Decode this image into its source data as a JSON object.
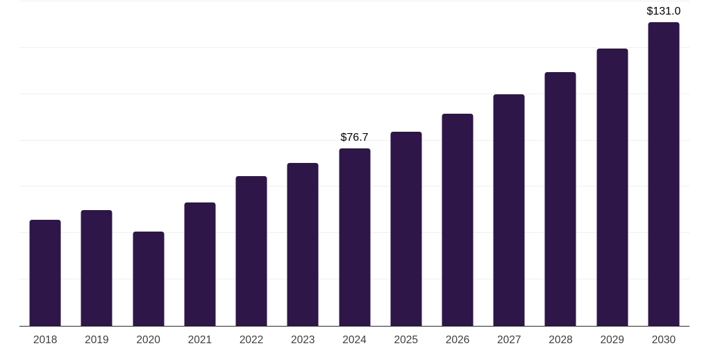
{
  "chart_data": {
    "type": "bar",
    "categories": [
      "2018",
      "2019",
      "2020",
      "2021",
      "2022",
      "2023",
      "2024",
      "2025",
      "2026",
      "2027",
      "2028",
      "2029",
      "2030"
    ],
    "values": [
      45.9,
      49.9,
      40.7,
      53.2,
      64.6,
      70.3,
      76.7,
      83.8,
      91.5,
      100.0,
      109.4,
      119.8,
      131.0
    ],
    "data_labels": {
      "2024": "$76.7",
      "2030": "$131.0"
    },
    "title": "",
    "xlabel": "",
    "ylabel": "",
    "ylim": [
      0,
      140
    ],
    "gridline_step": 20,
    "grid": true,
    "legend": false,
    "colors": {
      "bar": "#2e1648",
      "axis_line": "#2b2b2b",
      "gridline": "#efefef",
      "tick_label": "#3d3d3d",
      "data_label": "#000000"
    }
  }
}
